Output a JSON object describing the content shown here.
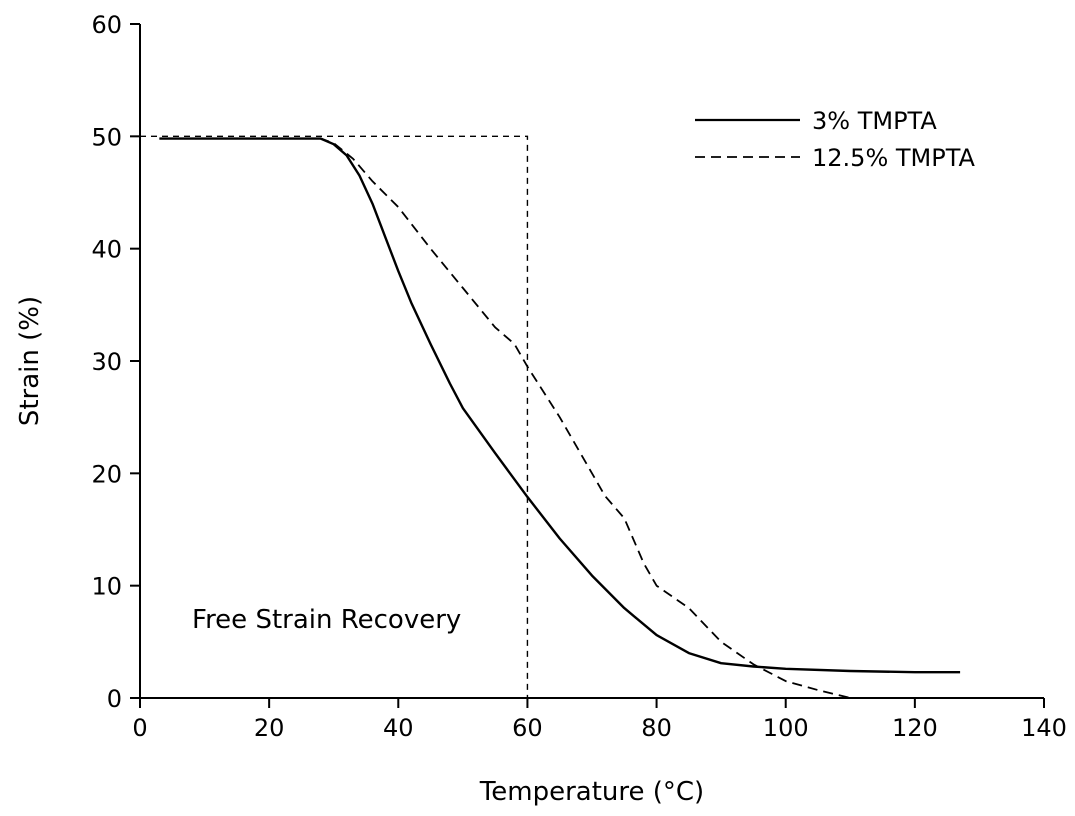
{
  "chart_data": {
    "type": "line",
    "xlabel": "Temperature (°C)",
    "ylabel": "Strain (%)",
    "xlim": [
      0,
      140
    ],
    "ylim": [
      0,
      60
    ],
    "xticks": [
      0,
      20,
      40,
      60,
      80,
      100,
      120,
      140
    ],
    "yticks": [
      0,
      10,
      20,
      30,
      40,
      50,
      60
    ],
    "grid": false,
    "legend_position": "top-right",
    "annotation": "Free Strain Recovery",
    "series": [
      {
        "name": "3% TMPTA",
        "style": "solid",
        "x": [
          3,
          10,
          20,
          28,
          30,
          32,
          34,
          36,
          38,
          40,
          42,
          45,
          48,
          50,
          55,
          60,
          65,
          70,
          75,
          80,
          85,
          90,
          95,
          100,
          110,
          120,
          127
        ],
        "y": [
          49.8,
          49.8,
          49.8,
          49.8,
          49.3,
          48.3,
          46.5,
          44,
          41,
          38,
          35.2,
          31.5,
          28,
          25.8,
          21.8,
          17.9,
          14.2,
          10.9,
          8,
          5.6,
          4,
          3.1,
          2.8,
          2.6,
          2.4,
          2.3,
          2.3
        ]
      },
      {
        "name": "12.5% TMPTA",
        "style": "dashed",
        "x": [
          3,
          20,
          28,
          30,
          33,
          36,
          40,
          45,
          50,
          55,
          58,
          60,
          65,
          70,
          72,
          75,
          78,
          80,
          85,
          90,
          95,
          100,
          105,
          110
        ],
        "y": [
          49.8,
          49.8,
          49.8,
          49.4,
          48,
          46,
          43.7,
          40,
          36.5,
          33,
          31.5,
          29.5,
          25,
          20,
          18,
          16,
          12,
          10,
          8,
          5,
          3,
          1.5,
          0.7,
          0
        ]
      }
    ],
    "reference_line": {
      "style": "dashed",
      "x": [
        0,
        60,
        60
      ],
      "y": [
        50,
        50,
        0
      ]
    }
  }
}
